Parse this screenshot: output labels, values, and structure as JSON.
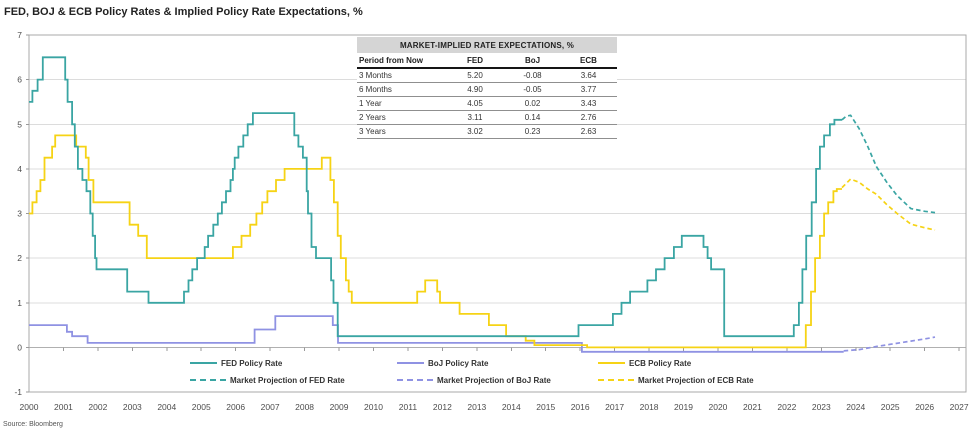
{
  "page": {
    "title": "FED, BOJ & ECB Policy Rates & Implied Policy Rate Expectations, %",
    "source": "Source: Bloomberg"
  },
  "table": {
    "title": "MARKET-IMPLIED RATE EXPECTATIONS, %",
    "columns": [
      "Period from Now",
      "FED",
      "BoJ",
      "ECB"
    ],
    "rows": [
      [
        "3 Months",
        "5.20",
        "-0.08",
        "3.64"
      ],
      [
        "6 Months",
        "4.90",
        "-0.05",
        "3.77"
      ],
      [
        "1 Year",
        "4.05",
        "0.02",
        "3.43"
      ],
      [
        "2 Years",
        "3.11",
        "0.14",
        "2.76"
      ],
      [
        "3 Years",
        "3.02",
        "0.23",
        "2.63"
      ]
    ]
  },
  "chart_data": {
    "type": "line",
    "title": "FED, BOJ & ECB Policy Rates & Implied Policy Rate Expectations, %",
    "xlabel": "",
    "ylabel": "",
    "x_range": [
      2000,
      2027.2
    ],
    "ylim": [
      -1,
      7
    ],
    "grid": "horizontal",
    "legend_position": "bottom-inside",
    "x_ticks": [
      2000,
      2001,
      2002,
      2003,
      2004,
      2005,
      2006,
      2007,
      2008,
      2009,
      2010,
      2011,
      2012,
      2013,
      2014,
      2015,
      2016,
      2017,
      2018,
      2019,
      2020,
      2021,
      2022,
      2023,
      2024,
      2025,
      2026,
      2027
    ],
    "y_ticks": [
      -1,
      0,
      1,
      2,
      3,
      4,
      5,
      6,
      7
    ],
    "colors": {
      "fed": "#3aa5a3",
      "boj": "#8f92e3",
      "ecb": "#f6d315",
      "grid": "#dcdcdc",
      "zero_axis": "#b0b0b0",
      "frame": "#a9a9a9",
      "tick_text": "#4d4d4d"
    },
    "series": [
      {
        "name": "FED Policy Rate",
        "color_key": "fed",
        "style": "solid",
        "interp": "step",
        "points": [
          [
            2000,
            5.5
          ],
          [
            2000.1,
            5.75
          ],
          [
            2000.25,
            6
          ],
          [
            2000.4,
            6.5
          ],
          [
            2001.05,
            6
          ],
          [
            2001.12,
            5.5
          ],
          [
            2001.25,
            5
          ],
          [
            2001.33,
            4.5
          ],
          [
            2001.42,
            4
          ],
          [
            2001.55,
            3.75
          ],
          [
            2001.67,
            3.5
          ],
          [
            2001.78,
            3
          ],
          [
            2001.85,
            2.5
          ],
          [
            2001.92,
            2
          ],
          [
            2001.96,
            1.75
          ],
          [
            2002.85,
            1.25
          ],
          [
            2003.47,
            1
          ],
          [
            2004.5,
            1.25
          ],
          [
            2004.63,
            1.5
          ],
          [
            2004.74,
            1.75
          ],
          [
            2004.88,
            2
          ],
          [
            2005.1,
            2.25
          ],
          [
            2005.2,
            2.5
          ],
          [
            2005.35,
            2.75
          ],
          [
            2005.48,
            3
          ],
          [
            2005.6,
            3.25
          ],
          [
            2005.72,
            3.5
          ],
          [
            2005.85,
            3.75
          ],
          [
            2005.92,
            4
          ],
          [
            2005.97,
            4.25
          ],
          [
            2006.08,
            4.5
          ],
          [
            2006.22,
            4.75
          ],
          [
            2006.35,
            5
          ],
          [
            2006.5,
            5.25
          ],
          [
            2007.7,
            4.75
          ],
          [
            2007.82,
            4.5
          ],
          [
            2007.95,
            4.25
          ],
          [
            2008.06,
            3.5
          ],
          [
            2008.1,
            3
          ],
          [
            2008.2,
            2.25
          ],
          [
            2008.33,
            2
          ],
          [
            2008.77,
            1.5
          ],
          [
            2008.84,
            1
          ],
          [
            2008.96,
            0.25
          ],
          [
            2015.95,
            0.5
          ],
          [
            2016.95,
            0.75
          ],
          [
            2017.2,
            1
          ],
          [
            2017.45,
            1.25
          ],
          [
            2017.95,
            1.5
          ],
          [
            2018.2,
            1.75
          ],
          [
            2018.45,
            2
          ],
          [
            2018.72,
            2.25
          ],
          [
            2018.95,
            2.5
          ],
          [
            2019.58,
            2.25
          ],
          [
            2019.7,
            2
          ],
          [
            2019.8,
            1.75
          ],
          [
            2020.18,
            0.25
          ],
          [
            2022.2,
            0.5
          ],
          [
            2022.35,
            1
          ],
          [
            2022.45,
            1.75
          ],
          [
            2022.56,
            2.5
          ],
          [
            2022.72,
            3.25
          ],
          [
            2022.85,
            4
          ],
          [
            2022.96,
            4.5
          ],
          [
            2023.08,
            4.75
          ],
          [
            2023.25,
            5
          ],
          [
            2023.38,
            5.1
          ],
          [
            2023.6,
            5.1
          ]
        ]
      },
      {
        "name": "BoJ Policy Rate",
        "color_key": "boj",
        "style": "solid",
        "interp": "step",
        "points": [
          [
            2000,
            0.5
          ],
          [
            2001.1,
            0.35
          ],
          [
            2001.25,
            0.25
          ],
          [
            2001.7,
            0.1
          ],
          [
            2006.55,
            0.4
          ],
          [
            2007.15,
            0.7
          ],
          [
            2008.82,
            0.5
          ],
          [
            2008.97,
            0.1
          ],
          [
            2016.05,
            -0.1
          ],
          [
            2023.65,
            -0.1
          ]
        ]
      },
      {
        "name": "ECB Policy Rate",
        "color_key": "ecb",
        "style": "solid",
        "interp": "step",
        "points": [
          [
            2000,
            3
          ],
          [
            2000.1,
            3.25
          ],
          [
            2000.22,
            3.5
          ],
          [
            2000.33,
            3.75
          ],
          [
            2000.45,
            4.25
          ],
          [
            2000.67,
            4.5
          ],
          [
            2000.76,
            4.75
          ],
          [
            2001.37,
            4.5
          ],
          [
            2001.65,
            4.25
          ],
          [
            2001.73,
            3.75
          ],
          [
            2001.87,
            3.25
          ],
          [
            2002.92,
            2.75
          ],
          [
            2003.17,
            2.5
          ],
          [
            2003.42,
            2
          ],
          [
            2005.92,
            2.25
          ],
          [
            2006.17,
            2.5
          ],
          [
            2006.42,
            2.75
          ],
          [
            2006.6,
            3
          ],
          [
            2006.77,
            3.25
          ],
          [
            2006.92,
            3.5
          ],
          [
            2007.17,
            3.75
          ],
          [
            2007.42,
            4
          ],
          [
            2008.5,
            4.25
          ],
          [
            2008.75,
            3.75
          ],
          [
            2008.85,
            3.25
          ],
          [
            2008.96,
            2.5
          ],
          [
            2009.05,
            2
          ],
          [
            2009.2,
            1.5
          ],
          [
            2009.28,
            1.25
          ],
          [
            2009.37,
            1
          ],
          [
            2011.27,
            1.25
          ],
          [
            2011.5,
            1.5
          ],
          [
            2011.85,
            1.25
          ],
          [
            2011.93,
            1
          ],
          [
            2012.5,
            0.75
          ],
          [
            2013.35,
            0.5
          ],
          [
            2013.85,
            0.25
          ],
          [
            2014.42,
            0.15
          ],
          [
            2014.67,
            0.05
          ],
          [
            2016.2,
            0
          ],
          [
            2022.55,
            0.5
          ],
          [
            2022.7,
            1.25
          ],
          [
            2022.82,
            2
          ],
          [
            2022.96,
            2.5
          ],
          [
            2023.08,
            3
          ],
          [
            2023.2,
            3.25
          ],
          [
            2023.35,
            3.5
          ],
          [
            2023.45,
            3.55
          ],
          [
            2023.6,
            3.55
          ]
        ]
      },
      {
        "name": "Market Projection of FED Rate",
        "color_key": "fed",
        "style": "dashed",
        "interp": "linear",
        "points": [
          [
            2023.6,
            5.1
          ],
          [
            2023.72,
            5.18
          ],
          [
            2023.85,
            5.2
          ],
          [
            2024.1,
            4.9
          ],
          [
            2024.35,
            4.5
          ],
          [
            2024.6,
            4.05
          ],
          [
            2024.9,
            3.7
          ],
          [
            2025.2,
            3.4
          ],
          [
            2025.6,
            3.11
          ],
          [
            2026,
            3.05
          ],
          [
            2026.3,
            3.02
          ]
        ]
      },
      {
        "name": "Market Projection of BoJ Rate",
        "color_key": "boj",
        "style": "dashed",
        "interp": "linear",
        "points": [
          [
            2023.65,
            -0.08
          ],
          [
            2024.1,
            -0.05
          ],
          [
            2024.6,
            0.02
          ],
          [
            2025.1,
            0.08
          ],
          [
            2025.6,
            0.14
          ],
          [
            2026,
            0.19
          ],
          [
            2026.3,
            0.23
          ]
        ]
      },
      {
        "name": "Market Projection of ECB Rate",
        "color_key": "ecb",
        "style": "dashed",
        "interp": "linear",
        "points": [
          [
            2023.6,
            3.58
          ],
          [
            2023.85,
            3.77
          ],
          [
            2024.1,
            3.7
          ],
          [
            2024.35,
            3.55
          ],
          [
            2024.6,
            3.43
          ],
          [
            2024.9,
            3.2
          ],
          [
            2025.2,
            3
          ],
          [
            2025.6,
            2.76
          ],
          [
            2026,
            2.68
          ],
          [
            2026.3,
            2.63
          ]
        ]
      }
    ]
  }
}
